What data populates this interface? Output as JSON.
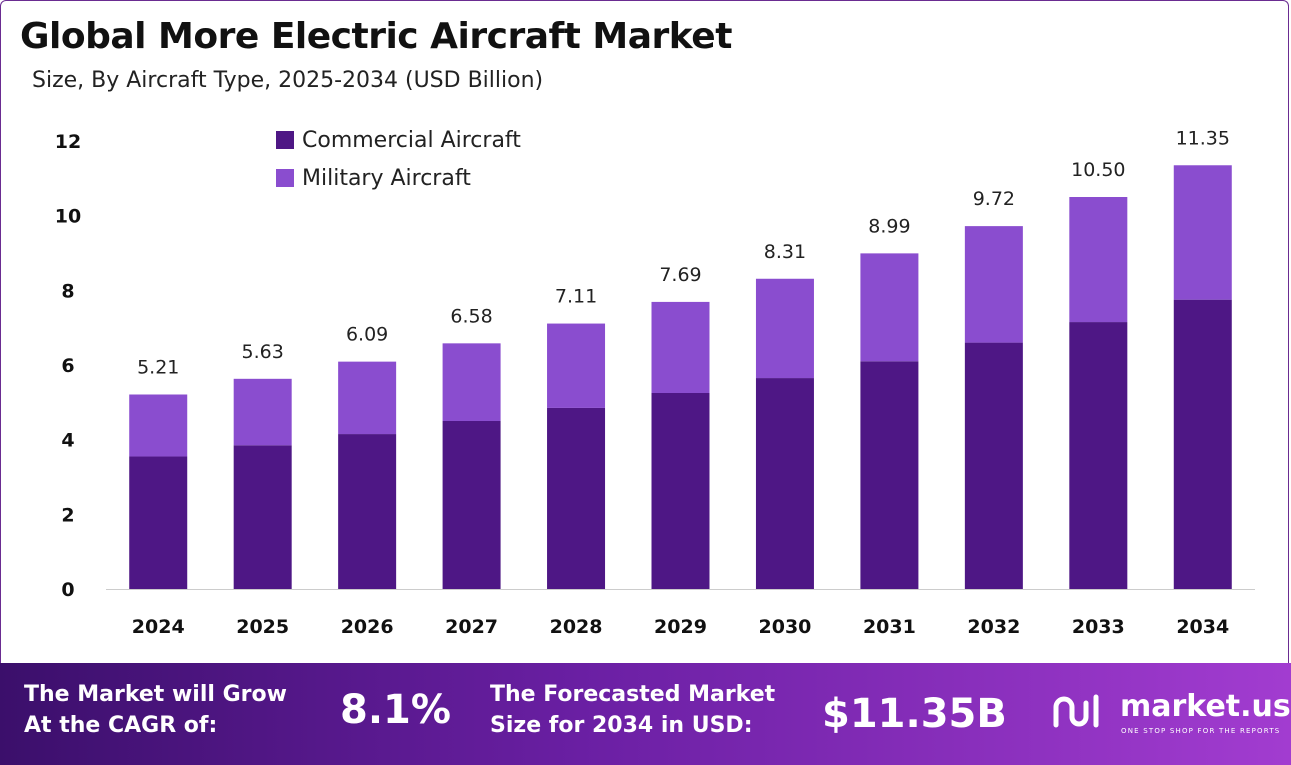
{
  "header": {
    "title": "Global More Electric Aircraft Market",
    "subtitle": "Size, By Aircraft Type, 2025-2034 (USD Billion)"
  },
  "chart_data": {
    "type": "bar",
    "stacked": true,
    "categories": [
      "2024",
      "2025",
      "2026",
      "2027",
      "2028",
      "2029",
      "2030",
      "2031",
      "2032",
      "2033",
      "2034"
    ],
    "series": [
      {
        "name": "Commercial Aircraft",
        "color": "#4e1785",
        "values": [
          3.55,
          3.85,
          4.15,
          4.5,
          4.85,
          5.25,
          5.65,
          6.1,
          6.6,
          7.15,
          7.75
        ]
      },
      {
        "name": "Military Aircraft",
        "color": "#8a4dcf",
        "values": [
          1.66,
          1.78,
          1.94,
          2.08,
          2.26,
          2.44,
          2.66,
          2.89,
          3.12,
          3.35,
          3.6
        ]
      }
    ],
    "totals_labels": [
      "5.21",
      "5.63",
      "6.09",
      "6.58",
      "7.11",
      "7.69",
      "8.31",
      "8.99",
      "9.72",
      "10.50",
      "11.35"
    ],
    "totals": [
      5.21,
      5.63,
      6.09,
      6.58,
      7.11,
      7.69,
      8.31,
      8.99,
      9.72,
      10.5,
      11.35
    ],
    "y_ticks": [
      0,
      2,
      4,
      6,
      8,
      10,
      12
    ],
    "ylim": [
      0,
      12
    ],
    "legend_position": "top-left",
    "grid": false,
    "xlabel": "",
    "ylabel": ""
  },
  "footer": {
    "cagr_text_line1": "The Market will Grow",
    "cagr_text_line2": "At the CAGR of:",
    "cagr_value": "8.1%",
    "forecast_text_line1": "The Forecasted Market",
    "forecast_text_line2": "Size for 2034 in USD:",
    "forecast_value": "$11.35B",
    "brand_name": "market.us",
    "brand_tagline": "ONE STOP SHOP FOR THE REPORTS"
  }
}
